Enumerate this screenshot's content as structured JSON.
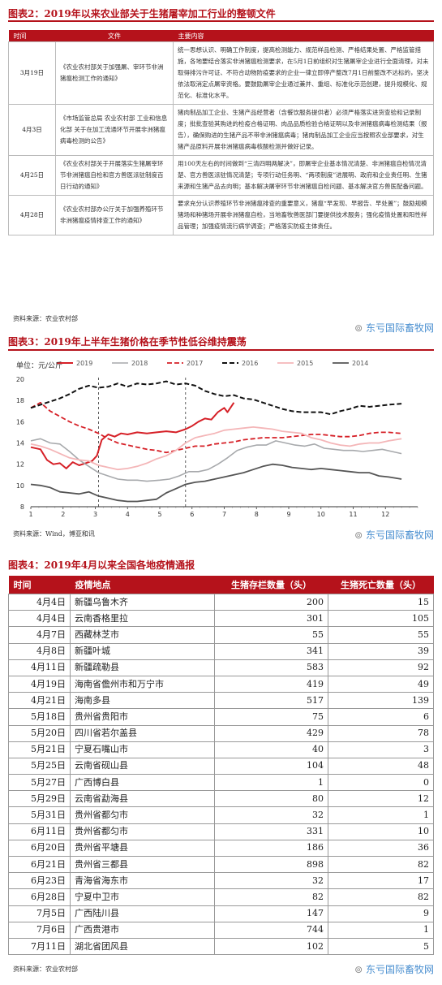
{
  "fig2": {
    "title": "图表2：2019年以来农业部关于生猪屠宰加工行业的整顿文件",
    "headers": [
      "时间",
      "文件",
      "主要内容"
    ],
    "rows": [
      {
        "date": "3月19日",
        "doc": "《农业农村部关于加强屠、宰环节非洲猪瘟检测工作的通知》",
        "content": "统一思想认识、明确工作制度，提高检测能力、规范样品检测、严格结果处置、严格监管措施，各地要结合落实非洲猪瘟检测要求，在5月1日前组织对生猪屠宰企业进行全面清理，对未取得排污许可证、不符合动物防疫要求的企业一律立即停产整改7月1日前整改不达标的，坚决依法取消定点屠宰资格。要鼓励屠宰企业通过兼并、重组、标准化示范创建，提升规模化、规范化、标准化水平。"
      },
      {
        "date": "4月3日",
        "doc": "《市场监管总局 农业农村部 工业和信息化部 关于在加工流通环节开展非洲猪瘟病毒检测的公告》",
        "content": "猪肉制品加工企业、生猪产品经营者（含餐饮服务提供者）必须严格落实进货查验和记录制度；批批查验其购进的检疫合格证明、肉品品质检验合格证明以及非洲猪瘟病毒检测结果（报告），确保购进的生猪产品不带非洲猪瘟病毒；猪肉制品加工企业应当按照农业部要求，对生猪产品原料开展非洲猪瘟病毒核酸检测并做好记录。"
      },
      {
        "date": "4月25日",
        "doc": "《农业农村部关于开展落实生猪屠宰环节非洲猪瘟自检和官方兽医派驻制度百日行动的通知》",
        "content": "用100天左右的时间做到“三清四明两解决”，即屠宰企业基本情况清楚、非洲猪瘟自检情况清楚、官方兽医派驻情况清楚；专项行动任务明、“两项制度”进展明、政府和企业责任明、生猪来源和生猪产品去向明；基本解决屠宰环节非洲猪瘟自检问题、基本解决官方兽医配备问题。"
      },
      {
        "date": "4月28日",
        "doc": "《农业农村部办公厅关于加强养殖环节非洲猪瘟疫情排查工作的通知》",
        "content": "要求充分认识养殖环节非洲猪瘟排查的重要意义，猪瘟“早发现、早报告、早处置”；鼓励规模猪场和种猪场开展非洲猪瘟自检，当地畜牧兽医部门要提供技术服务；强化疫情处置和阳性样品管理；加强疫情流行病学调查；严格落实防疫主体责任。"
      }
    ],
    "source": "资料来源：农业农村部"
  },
  "watermark": {
    "prefix": "东",
    "rest": "亏国际畜牧网"
  },
  "fig3": {
    "title": "图表3：2019年上半年生猪价格在季节性低谷维持震荡",
    "source": "资料来源：Wind，博亚和讯"
  },
  "chart_data": {
    "type": "line",
    "ylabel": "单位：元/公斤",
    "xlabel": "",
    "ylim": [
      8,
      20
    ],
    "yticks": [
      8,
      10,
      12,
      14,
      16,
      18,
      20
    ],
    "xticks": [
      1,
      2,
      3,
      4,
      5,
      6,
      7,
      8,
      9,
      10,
      11,
      12
    ],
    "xlim": [
      1,
      13
    ],
    "vlines": [
      3.1,
      5.8
    ],
    "grid": false,
    "legend_position": "top",
    "series": [
      {
        "name": "2019",
        "color": "#d62027",
        "dash": "solid",
        "width": 2,
        "points": [
          [
            1,
            13.6
          ],
          [
            1.3,
            13.4
          ],
          [
            1.5,
            12.4
          ],
          [
            1.7,
            12.0
          ],
          [
            1.9,
            12.1
          ],
          [
            2.1,
            11.6
          ],
          [
            2.3,
            12.2
          ],
          [
            2.5,
            11.9
          ],
          [
            2.7,
            12.1
          ],
          [
            2.9,
            12.3
          ],
          [
            3.05,
            12.8
          ],
          [
            3.2,
            14.3
          ],
          [
            3.4,
            14.8
          ],
          [
            3.6,
            14.6
          ],
          [
            3.8,
            14.9
          ],
          [
            4.0,
            14.8
          ],
          [
            4.3,
            15.0
          ],
          [
            4.6,
            14.9
          ],
          [
            4.9,
            15.0
          ],
          [
            5.2,
            15.1
          ],
          [
            5.5,
            15.0
          ],
          [
            5.8,
            15.3
          ],
          [
            6.0,
            15.6
          ],
          [
            6.2,
            16.0
          ],
          [
            6.4,
            16.3
          ],
          [
            6.6,
            16.2
          ],
          [
            6.8,
            16.9
          ],
          [
            7.0,
            17.3
          ],
          [
            7.1,
            16.9
          ],
          [
            7.3,
            17.8
          ]
        ]
      },
      {
        "name": "2018",
        "color": "#a7a9ac",
        "dash": "solid",
        "width": 1.6,
        "points": [
          [
            1,
            14.2
          ],
          [
            1.3,
            14.4
          ],
          [
            1.6,
            14.0
          ],
          [
            1.9,
            13.9
          ],
          [
            2.2,
            13.2
          ],
          [
            2.5,
            12.4
          ],
          [
            2.8,
            11.8
          ],
          [
            3.1,
            11.2
          ],
          [
            3.4,
            10.9
          ],
          [
            3.7,
            10.6
          ],
          [
            4.0,
            10.5
          ],
          [
            4.3,
            10.5
          ],
          [
            4.6,
            10.4
          ],
          [
            5.0,
            10.5
          ],
          [
            5.3,
            10.6
          ],
          [
            5.6,
            10.9
          ],
          [
            5.9,
            11.3
          ],
          [
            6.2,
            11.3
          ],
          [
            6.5,
            11.5
          ],
          [
            6.8,
            12.0
          ],
          [
            7.1,
            12.6
          ],
          [
            7.4,
            13.3
          ],
          [
            7.7,
            13.6
          ],
          [
            8.0,
            13.8
          ],
          [
            8.3,
            13.8
          ],
          [
            8.6,
            14.2
          ],
          [
            8.9,
            14.0
          ],
          [
            9.2,
            13.8
          ],
          [
            9.5,
            13.7
          ],
          [
            9.8,
            13.9
          ],
          [
            10.1,
            13.5
          ],
          [
            10.4,
            13.4
          ],
          [
            10.7,
            13.3
          ],
          [
            11.0,
            13.3
          ],
          [
            11.3,
            13.2
          ],
          [
            11.6,
            13.3
          ],
          [
            11.9,
            13.4
          ],
          [
            12.2,
            13.2
          ],
          [
            12.5,
            13.0
          ]
        ]
      },
      {
        "name": "2017",
        "color": "#d62027",
        "dash": "dash",
        "width": 1.8,
        "points": [
          [
            1,
            17.3
          ],
          [
            1.3,
            17.8
          ],
          [
            1.6,
            17.0
          ],
          [
            1.9,
            16.5
          ],
          [
            2.2,
            16.0
          ],
          [
            2.5,
            15.6
          ],
          [
            2.8,
            15.3
          ],
          [
            3.1,
            14.9
          ],
          [
            3.4,
            14.4
          ],
          [
            3.7,
            14.0
          ],
          [
            4.0,
            13.8
          ],
          [
            4.3,
            13.6
          ],
          [
            4.6,
            13.4
          ],
          [
            4.9,
            13.3
          ],
          [
            5.2,
            13.1
          ],
          [
            5.5,
            13.3
          ],
          [
            5.8,
            13.5
          ],
          [
            6.1,
            13.7
          ],
          [
            6.4,
            13.7
          ],
          [
            6.7,
            13.9
          ],
          [
            7.0,
            14.0
          ],
          [
            7.3,
            14.1
          ],
          [
            7.6,
            14.3
          ],
          [
            7.9,
            14.4
          ],
          [
            8.2,
            14.5
          ],
          [
            8.5,
            14.5
          ],
          [
            8.8,
            14.5
          ],
          [
            9.1,
            14.6
          ],
          [
            9.4,
            14.7
          ],
          [
            9.7,
            14.8
          ],
          [
            10.0,
            14.8
          ],
          [
            10.3,
            14.7
          ],
          [
            10.6,
            14.6
          ],
          [
            10.9,
            14.6
          ],
          [
            11.2,
            14.7
          ],
          [
            11.5,
            14.9
          ],
          [
            11.8,
            15.0
          ],
          [
            12.1,
            15.0
          ],
          [
            12.5,
            14.9
          ]
        ]
      },
      {
        "name": "2016",
        "color": "#111111",
        "dash": "dash",
        "width": 2,
        "points": [
          [
            1,
            17.3
          ],
          [
            1.3,
            17.6
          ],
          [
            1.6,
            17.9
          ],
          [
            1.9,
            18.2
          ],
          [
            2.2,
            18.6
          ],
          [
            2.5,
            19.1
          ],
          [
            2.8,
            19.4
          ],
          [
            3.1,
            19.2
          ],
          [
            3.4,
            19.3
          ],
          [
            3.7,
            19.6
          ],
          [
            4.0,
            19.3
          ],
          [
            4.3,
            19.6
          ],
          [
            4.6,
            19.5
          ],
          [
            4.9,
            19.6
          ],
          [
            5.2,
            19.8
          ],
          [
            5.5,
            19.5
          ],
          [
            5.8,
            19.6
          ],
          [
            6.1,
            19.4
          ],
          [
            6.4,
            18.9
          ],
          [
            6.7,
            18.6
          ],
          [
            7.0,
            18.4
          ],
          [
            7.3,
            18.5
          ],
          [
            7.6,
            18.2
          ],
          [
            7.9,
            18.1
          ],
          [
            8.2,
            17.8
          ],
          [
            8.5,
            17.5
          ],
          [
            8.8,
            17.2
          ],
          [
            9.1,
            17.0
          ],
          [
            9.4,
            16.9
          ],
          [
            9.7,
            16.9
          ],
          [
            10.0,
            16.9
          ],
          [
            10.3,
            16.7
          ],
          [
            10.6,
            17.0
          ],
          [
            10.9,
            17.2
          ],
          [
            11.2,
            17.5
          ],
          [
            11.5,
            17.4
          ],
          [
            11.8,
            17.5
          ],
          [
            12.1,
            17.6
          ],
          [
            12.5,
            17.7
          ]
        ]
      },
      {
        "name": "2015",
        "color": "#f4b6b8",
        "dash": "solid",
        "width": 1.8,
        "points": [
          [
            1,
            13.9
          ],
          [
            1.3,
            13.7
          ],
          [
            1.6,
            13.4
          ],
          [
            1.9,
            13.0
          ],
          [
            2.2,
            12.6
          ],
          [
            2.5,
            12.4
          ],
          [
            2.8,
            12.3
          ],
          [
            3.1,
            11.9
          ],
          [
            3.4,
            11.7
          ],
          [
            3.7,
            11.5
          ],
          [
            4.0,
            11.6
          ],
          [
            4.3,
            11.8
          ],
          [
            4.6,
            12.1
          ],
          [
            4.9,
            12.5
          ],
          [
            5.2,
            12.8
          ],
          [
            5.5,
            13.3
          ],
          [
            5.8,
            14.0
          ],
          [
            6.1,
            14.5
          ],
          [
            6.4,
            14.7
          ],
          [
            6.7,
            14.9
          ],
          [
            7.0,
            15.2
          ],
          [
            7.3,
            15.3
          ],
          [
            7.6,
            15.4
          ],
          [
            7.9,
            15.5
          ],
          [
            8.2,
            15.4
          ],
          [
            8.5,
            15.3
          ],
          [
            8.8,
            15.1
          ],
          [
            9.1,
            15.0
          ],
          [
            9.4,
            14.9
          ],
          [
            9.7,
            14.5
          ],
          [
            10.0,
            14.3
          ],
          [
            10.3,
            14.0
          ],
          [
            10.6,
            13.8
          ],
          [
            10.9,
            13.7
          ],
          [
            11.2,
            13.9
          ],
          [
            11.5,
            14.0
          ],
          [
            11.8,
            14.0
          ],
          [
            12.1,
            14.2
          ],
          [
            12.5,
            14.4
          ]
        ]
      },
      {
        "name": "2014",
        "color": "#555555",
        "dash": "solid",
        "width": 1.8,
        "points": [
          [
            1,
            10.1
          ],
          [
            1.3,
            10.0
          ],
          [
            1.6,
            9.8
          ],
          [
            1.9,
            9.4
          ],
          [
            2.2,
            9.3
          ],
          [
            2.5,
            9.2
          ],
          [
            2.8,
            9.4
          ],
          [
            3.1,
            9.0
          ],
          [
            3.4,
            8.8
          ],
          [
            3.7,
            8.6
          ],
          [
            4.0,
            8.5
          ],
          [
            4.3,
            8.5
          ],
          [
            4.6,
            8.6
          ],
          [
            4.9,
            8.7
          ],
          [
            5.2,
            9.3
          ],
          [
            5.5,
            9.7
          ],
          [
            5.8,
            10.1
          ],
          [
            6.1,
            10.3
          ],
          [
            6.4,
            10.4
          ],
          [
            6.7,
            10.6
          ],
          [
            7.0,
            10.8
          ],
          [
            7.3,
            11.0
          ],
          [
            7.6,
            11.2
          ],
          [
            7.9,
            11.5
          ],
          [
            8.2,
            11.8
          ],
          [
            8.5,
            12.0
          ],
          [
            8.8,
            11.9
          ],
          [
            9.1,
            11.7
          ],
          [
            9.4,
            11.6
          ],
          [
            9.7,
            11.5
          ],
          [
            10.0,
            11.6
          ],
          [
            10.3,
            11.5
          ],
          [
            10.6,
            11.4
          ],
          [
            10.9,
            11.3
          ],
          [
            11.2,
            11.2
          ],
          [
            11.5,
            11.2
          ],
          [
            11.8,
            10.9
          ],
          [
            12.1,
            10.8
          ],
          [
            12.5,
            10.6
          ]
        ]
      }
    ]
  },
  "fig4": {
    "title": "图表4：2019年4月以来全国各地疫情通报",
    "headers": [
      "时间",
      "疫情地点",
      "生猪存栏数量（头）",
      "生猪死亡数量（头）"
    ],
    "rows": [
      [
        "4月4日",
        "新疆乌鲁木齐",
        "200",
        "15"
      ],
      [
        "4月4日",
        "云南香格里拉",
        "301",
        "105"
      ],
      [
        "4月7日",
        "西藏林芝市",
        "55",
        "55"
      ],
      [
        "4月8日",
        "新疆叶城",
        "341",
        "39"
      ],
      [
        "4月11日",
        "新疆疏勒县",
        "583",
        "92"
      ],
      [
        "4月19日",
        "海南省儋州市和万宁市",
        "419",
        "49"
      ],
      [
        "4月21日",
        "海南多县",
        "517",
        "139"
      ],
      [
        "5月18日",
        "贵州省贵阳市",
        "75",
        "6"
      ],
      [
        "5月20日",
        "四川省若尔盖县",
        "429",
        "78"
      ],
      [
        "5月21日",
        "宁夏石嘴山市",
        "40",
        "3"
      ],
      [
        "5月25日",
        "云南省砚山县",
        "104",
        "48"
      ],
      [
        "5月27日",
        "广西博白县",
        "1",
        "0"
      ],
      [
        "5月29日",
        "云南省勐海县",
        "80",
        "12"
      ],
      [
        "5月31日",
        "贵州省都匀市",
        "32",
        "1"
      ],
      [
        "6月11日",
        "贵州省都匀市",
        "331",
        "10"
      ],
      [
        "6月20日",
        "贵州省平塘县",
        "186",
        "36"
      ],
      [
        "6月21日",
        "贵州省三都县",
        "898",
        "82"
      ],
      [
        "6月23日",
        "青海省海东市",
        "32",
        "17"
      ],
      [
        "6月28日",
        "宁夏中卫市",
        "82",
        "82"
      ],
      [
        "7月5日",
        "广西陆川县",
        "147",
        "9"
      ],
      [
        "7月6日",
        "广西贵港市",
        "744",
        "1"
      ],
      [
        "7月11日",
        "湖北省团风县",
        "102",
        "5"
      ]
    ],
    "source": "资料来源：农业农村部"
  }
}
